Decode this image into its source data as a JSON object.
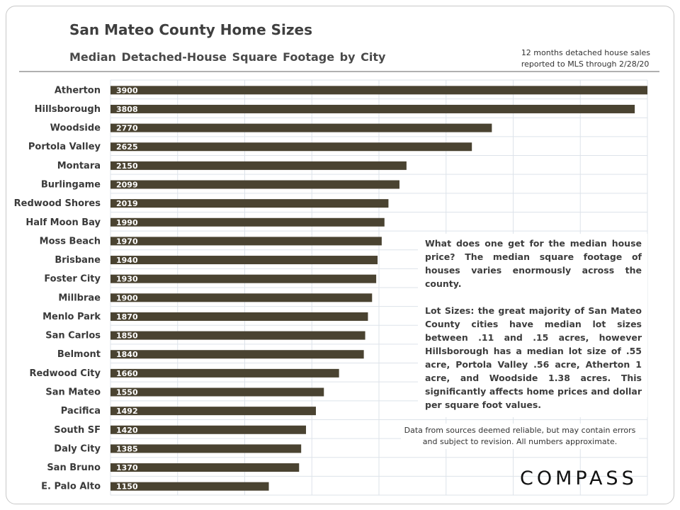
{
  "title": "San Mateo County Home Sizes",
  "subtitle": "Median Detached-House Square Footage by City",
  "note_lines": [
    "12 months detached house sales",
    "reported to MLS through 2/28/20"
  ],
  "commentary": {
    "p1": "What does one get for the median house price? The median square footage of houses varies enormously across the county.",
    "p2": "Lot Sizes: the great majority of San Mateo County cities have median lot sizes between .11 and .15 acres, however Hillsborough has a median lot size of .55 acre, Portola Valley .56 acre, Atherton 1 acre, and Woodside 1.38 acres. This significantly affects home prices and dollar per square foot values."
  },
  "disclaimer_lines": [
    "Data from sources deemed reliable, but may contain errors",
    "and subject to revision. All numbers approximate."
  ],
  "logo_text": "COMPASS",
  "colors": {
    "bar": "#4a4331",
    "grid": "#dde3ea",
    "label": "#3a3a3a"
  },
  "chart_data": {
    "type": "bar",
    "orientation": "horizontal",
    "title": "San Mateo County Home Sizes",
    "subtitle": "Median Detached-House Square Footage by City",
    "categories": [
      "Atherton",
      "Hillsborough",
      "Woodside",
      "Portola Valley",
      "Montara",
      "Burlingame",
      "Redwood Shores",
      "Half Moon Bay",
      "Moss Beach",
      "Brisbane",
      "Foster City",
      "Millbrae",
      "Menlo Park",
      "San Carlos",
      "Belmont",
      "Redwood City",
      "San Mateo",
      "Pacifica",
      "South SF",
      "Daly City",
      "San Bruno",
      "E. Palo Alto"
    ],
    "values": [
      3900,
      3808,
      2770,
      2625,
      2150,
      2099,
      2019,
      1990,
      1970,
      1940,
      1930,
      1900,
      1870,
      1850,
      1840,
      1660,
      1550,
      1492,
      1420,
      1385,
      1370,
      1150
    ],
    "xlim": [
      0,
      3900
    ],
    "grid": true,
    "legend": "none"
  }
}
